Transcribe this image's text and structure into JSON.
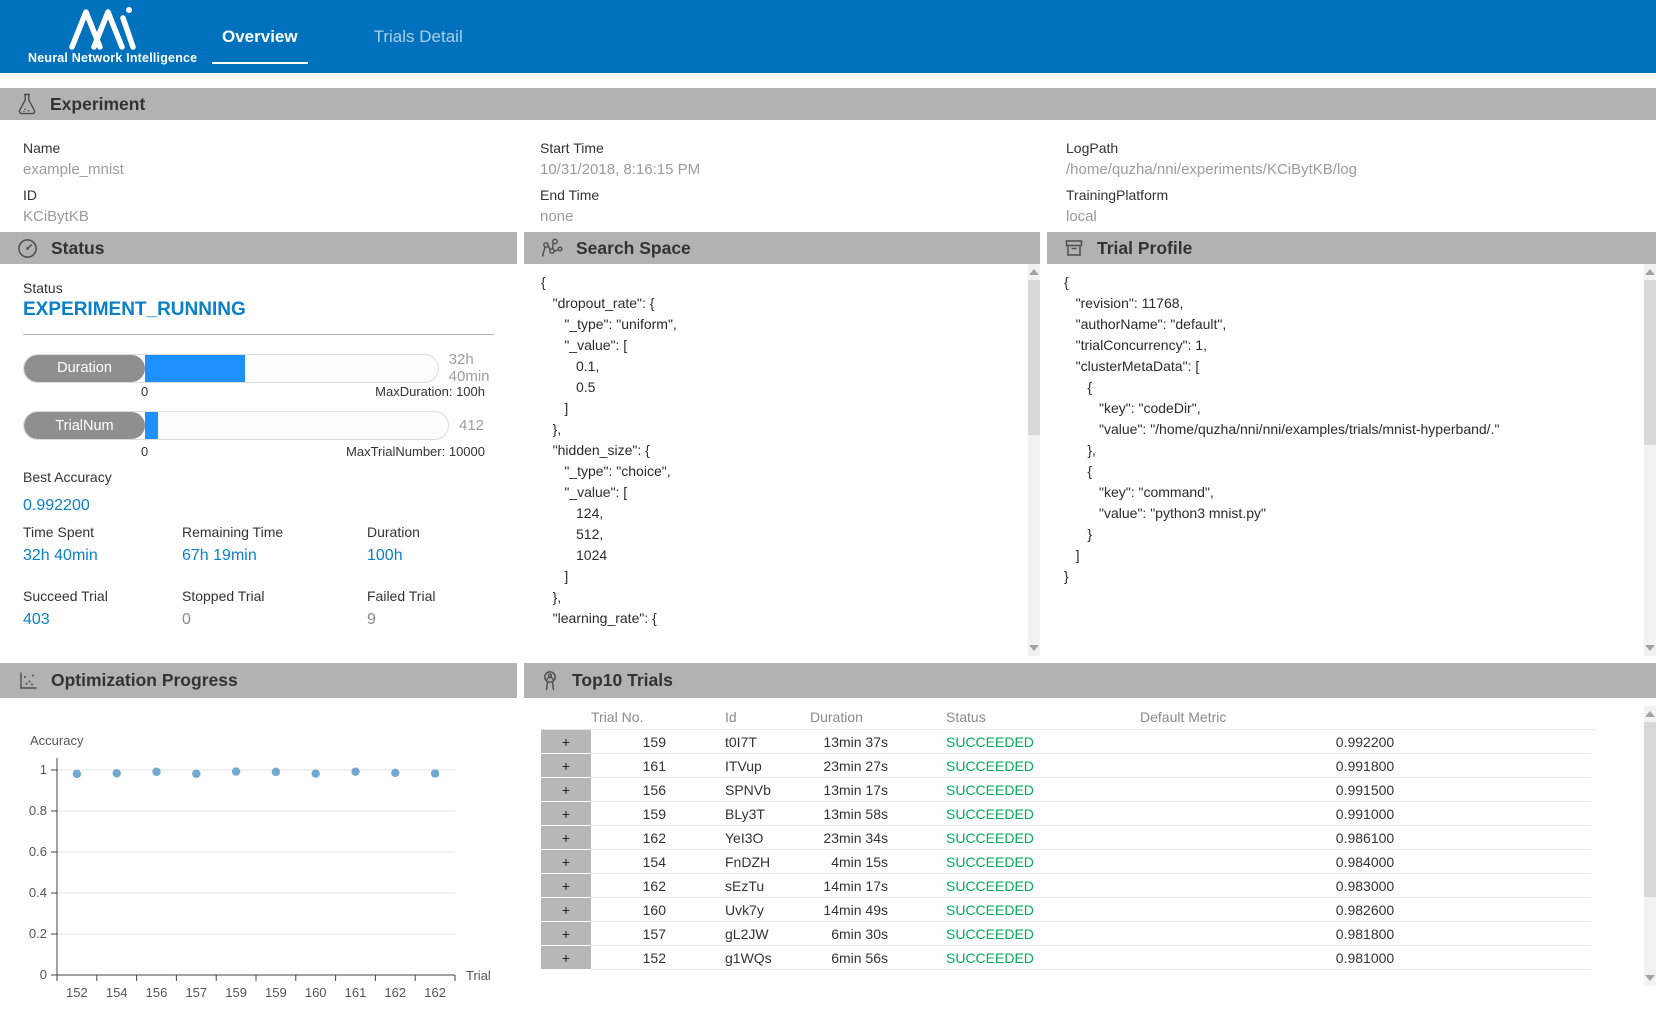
{
  "header": {
    "brand": "Neural Network Intelligence",
    "tabs": [
      {
        "label": "Overview",
        "active": true
      },
      {
        "label": "Trials Detail",
        "active": false
      }
    ]
  },
  "experiment": {
    "title": "Experiment",
    "columns": [
      [
        {
          "label": "Name",
          "value": "example_mnist"
        },
        {
          "label": "ID",
          "value": "KCiBytKB"
        }
      ],
      [
        {
          "label": "Start Time",
          "value": "10/31/2018, 8:16:15 PM"
        },
        {
          "label": "End Time",
          "value": "none"
        }
      ],
      [
        {
          "label": "LogPath",
          "value": "/home/quzha/nni/experiments/KCiBytKB/log"
        },
        {
          "label": "TrainingPlatform",
          "value": "local"
        }
      ]
    ]
  },
  "status_panel": {
    "title": "Status",
    "status_label": "Status",
    "status_value": "EXPERIMENT_RUNNING",
    "duration_bar": {
      "label": "Duration",
      "value": "32h 40min",
      "min": "0",
      "max_label": "MaxDuration: 100h",
      "percent": 32.7
    },
    "trialnum_bar": {
      "label": "TrialNum",
      "value": "412",
      "min": "0",
      "max_label": "MaxTrialNumber: 10000",
      "percent": 4.2
    },
    "best_accuracy_label": "Best Accuracy",
    "best_accuracy": "0.992200",
    "stats": [
      {
        "label": "Time Spent",
        "value": "32h 40min",
        "blue": true
      },
      {
        "label": "Remaining Time",
        "value": "67h 19min",
        "blue": true
      },
      {
        "label": "Duration",
        "value": "100h",
        "blue": true
      },
      {
        "label": "Succeed Trial",
        "value": "403",
        "blue": true
      },
      {
        "label": "Stopped Trial",
        "value": "0",
        "blue": false
      },
      {
        "label": "Failed Trial",
        "value": "9",
        "blue": false
      }
    ]
  },
  "search_space": {
    "title": "Search Space",
    "json_lines": [
      "{",
      "   \"dropout_rate\": {",
      "      \"_type\": \"uniform\",",
      "      \"_value\": [",
      "         0.1,",
      "         0.5",
      "      ]",
      "   },",
      "   \"hidden_size\": {",
      "      \"_type\": \"choice\",",
      "      \"_value\": [",
      "         124,",
      "         512,",
      "         1024",
      "      ]",
      "   },",
      "   \"learning_rate\": {"
    ]
  },
  "trial_profile": {
    "title": "Trial Profile",
    "json_lines": [
      "{",
      "   \"revision\": 11768,",
      "   \"authorName\": \"default\",",
      "   \"trialConcurrency\": 1,",
      "   \"clusterMetaData\": [",
      "      {",
      "         \"key\": \"codeDir\",",
      "         \"value\": \"/home/quzha/nni/nni/examples/trials/mnist-hyperband/.\"",
      "      },",
      "      {",
      "         \"key\": \"command\",",
      "         \"value\": \"python3 mnist.py\"",
      "      }",
      "   ]",
      "}"
    ]
  },
  "optimization": {
    "title": "Optimization Progress",
    "chart_data": {
      "type": "scatter",
      "ylabel": "Accuracy",
      "xlabel": "Trial",
      "y_ticks": [
        0,
        0.2,
        0.4,
        0.6,
        0.8,
        1
      ],
      "ylim": [
        0,
        1
      ],
      "grid": true,
      "x_tick_labels": [
        "152",
        "154",
        "156",
        "157",
        "159",
        "159",
        "160",
        "161",
        "162",
        "162"
      ],
      "values": [
        0.981,
        0.984,
        0.9915,
        0.9818,
        0.9922,
        0.991,
        0.9826,
        0.9918,
        0.9861,
        0.983
      ]
    }
  },
  "top10": {
    "title": "Top10 Trials",
    "expand_symbol": "+",
    "columns": [
      "Trial No.",
      "Id",
      "Duration",
      "Status",
      "Default Metric"
    ],
    "rows": [
      {
        "trial_no": "159",
        "id": "t0I7T",
        "duration": "13min 37s",
        "status": "SUCCEEDED",
        "metric": "0.992200"
      },
      {
        "trial_no": "161",
        "id": "ITVup",
        "duration": "23min 27s",
        "status": "SUCCEEDED",
        "metric": "0.991800"
      },
      {
        "trial_no": "156",
        "id": "SPNVb",
        "duration": "13min 17s",
        "status": "SUCCEEDED",
        "metric": "0.991500"
      },
      {
        "trial_no": "159",
        "id": "BLy3T",
        "duration": "13min 58s",
        "status": "SUCCEEDED",
        "metric": "0.991000"
      },
      {
        "trial_no": "162",
        "id": "YeI3O",
        "duration": "23min 34s",
        "status": "SUCCEEDED",
        "metric": "0.986100"
      },
      {
        "trial_no": "154",
        "id": "FnDZH",
        "duration": "4min 15s",
        "status": "SUCCEEDED",
        "metric": "0.984000"
      },
      {
        "trial_no": "162",
        "id": "sEzTu",
        "duration": "14min 17s",
        "status": "SUCCEEDED",
        "metric": "0.983000"
      },
      {
        "trial_no": "160",
        "id": "Uvk7y",
        "duration": "14min 49s",
        "status": "SUCCEEDED",
        "metric": "0.982600"
      },
      {
        "trial_no": "157",
        "id": "gL2JW",
        "duration": "6min 30s",
        "status": "SUCCEEDED",
        "metric": "0.981800"
      },
      {
        "trial_no": "152",
        "id": "g1WQs",
        "duration": "6min 56s",
        "status": "SUCCEEDED",
        "metric": "0.981000"
      }
    ]
  },
  "colors": {
    "header_blue": "#0071bc",
    "section_bar_gray": "#b2b2b2",
    "accent_blue": "#0b80c9",
    "progress_blue": "#1e90ff",
    "success_green": "#00ad56",
    "value_gray": "#9b9b9b",
    "dot_blue": "#64a0cc"
  }
}
